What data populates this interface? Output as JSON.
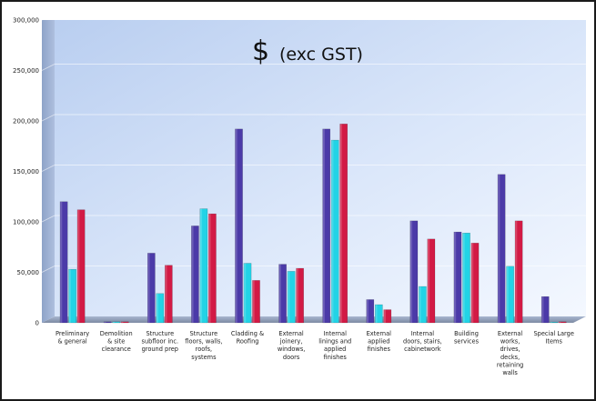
{
  "chart_data": {
    "type": "bar",
    "title": "$ (exc GST)",
    "title_symbol": "$",
    "title_text": "(exc GST)",
    "ylim": [
      0,
      300000
    ],
    "y_ticks": [
      "0",
      "50,000",
      "100,000",
      "150,000",
      "200,000",
      "250,000",
      "300,000"
    ],
    "y_tick_values": [
      0,
      50000,
      100000,
      150000,
      200000,
      250000,
      300000
    ],
    "grid": true,
    "legend": "none",
    "categories": [
      [
        "Preliminary",
        "& general"
      ],
      [
        "Demolition",
        "& site",
        "clearance"
      ],
      [
        "Structure",
        "subfloor inc.",
        "ground prep"
      ],
      [
        "Structure",
        "floors, walls,",
        "roofs,",
        "systems"
      ],
      [
        "Cladding &",
        "Roofing"
      ],
      [
        "External",
        "joinery,",
        "windows,",
        "doors"
      ],
      [
        "Internal",
        "linings and",
        "applied",
        "finishes"
      ],
      [
        "External",
        "applied",
        "finishes"
      ],
      [
        "Internal",
        "doors, stairs,",
        "cabinetwork"
      ],
      [
        "Building",
        "services"
      ],
      [
        "External",
        "works,",
        "drives,",
        "decks,",
        "retaining",
        "walls"
      ],
      [
        "Special Large",
        "Items"
      ]
    ],
    "series": [
      {
        "color": "#4b3aa8",
        "values": [
          120000,
          1000,
          69000,
          96000,
          192000,
          58000,
          192000,
          23000,
          101000,
          90000,
          147000,
          26000
        ]
      },
      {
        "color": "#22d3e6",
        "values": [
          53000,
          1000,
          29000,
          113000,
          59000,
          51000,
          181000,
          18000,
          36000,
          89000,
          56000,
          0
        ]
      },
      {
        "color": "#d21a45",
        "values": [
          112000,
          1000,
          57000,
          108000,
          42000,
          54000,
          197000,
          13000,
          83000,
          79000,
          101000,
          1000
        ]
      }
    ]
  }
}
